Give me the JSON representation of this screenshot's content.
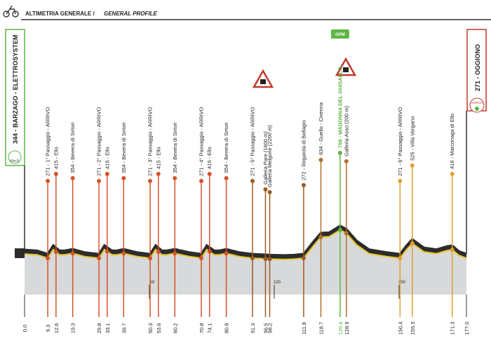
{
  "chart_data": {
    "type": "profile",
    "title": "ALTIMETRIA GENERALE /",
    "subtitle": "GENERAL PROFILE",
    "start": {
      "label": "344 - BARZAGO - ELETTROSYSTEM",
      "note": "Km 0"
    },
    "finish": {
      "label": "271 - OGGIONO",
      "note": "ARRIVO"
    },
    "climb_tag": "GPM",
    "xlim": [
      0,
      177
    ],
    "ylim": [
      200,
      900
    ],
    "xticks": [
      {
        "value": 0,
        "label": "0.0"
      },
      50,
      100,
      150,
      {
        "value": 177,
        "label": "177.0"
      }
    ],
    "profile": {
      "x": [
        0,
        5,
        9.3,
        11.5,
        14,
        16,
        19.3,
        24,
        29.8,
        32,
        35,
        37,
        39.7,
        45,
        50.3,
        52.5,
        55,
        57,
        60.2,
        66,
        70.8,
        73,
        76,
        78,
        80.8,
        86,
        91.3,
        96.5,
        98.2,
        104,
        108,
        111.8,
        116,
        118.7,
        122,
        126.4,
        128.9,
        133,
        138,
        145,
        150.4,
        153,
        155.3,
        160,
        165,
        169,
        171.3,
        174,
        177
      ],
      "values": [
        344,
        330,
        271,
        420,
        330,
        330,
        354,
        300,
        271,
        420,
        330,
        330,
        354,
        300,
        271,
        420,
        330,
        330,
        354,
        300,
        271,
        420,
        330,
        330,
        354,
        300,
        271,
        260,
        255,
        250,
        255,
        272,
        500,
        634,
        640,
        756,
        700,
        500,
        350,
        300,
        271,
        420,
        525,
        380,
        350,
        400,
        416,
        320,
        271
      ]
    },
    "waypoints": [
      {
        "km": 9.3,
        "label": "271 - 1° Passaggio - ARRIVO",
        "color": "#d35428"
      },
      {
        "km": 12.6,
        "label": "415 - Ello",
        "color": "#d35428"
      },
      {
        "km": 19.3,
        "label": "354 - Bevera di Sirtori",
        "color": "#d35428"
      },
      {
        "km": 29.8,
        "label": "271 - 2° Passaggio - ARRIVO",
        "color": "#d35428"
      },
      {
        "km": 33.1,
        "label": "415 - Ello",
        "color": "#d35428"
      },
      {
        "km": 39.7,
        "label": "354 - Bevera di Sirtori",
        "color": "#d35428"
      },
      {
        "km": 50.3,
        "label": "271 - 3° Passaggio - ARRIVO",
        "color": "#d35428"
      },
      {
        "km": 53.6,
        "label": "415 - Ello",
        "color": "#d35428"
      },
      {
        "km": 60.2,
        "label": "354 - Bevera di Sirtori",
        "color": "#d35428"
      },
      {
        "km": 70.8,
        "label": "271 - 4° Passaggio - ARRIVO",
        "color": "#d35428"
      },
      {
        "km": 74.1,
        "label": "415 - Ello",
        "color": "#d35428"
      },
      {
        "km": 80.8,
        "label": "354 - Bevera di Sirtori",
        "color": "#d35428"
      },
      {
        "km": 91.3,
        "label": "271 - 5° Passaggio - ARRIVO",
        "color": "#9c5a24"
      },
      {
        "km": 96.5,
        "label": "Galleria Pare (1600 m)",
        "color": "#9c5a24"
      },
      {
        "km": 98.2,
        "label": "Galleria Melgone (2200 m)",
        "color": "#9c5a24"
      },
      {
        "km": 111.8,
        "label": "272 - Regatola di Bellagio",
        "color": "#9c5a24"
      },
      {
        "km": 118.7,
        "label": "634 - Guello - Civenna",
        "color": "#b0702a"
      },
      {
        "km": 126.4,
        "label": "756 - MADONNA DEL GHISALLO",
        "color": "#5db544"
      },
      {
        "km": 128.9,
        "label": "Galleria Asso (200 m)",
        "color": "#b0702a"
      },
      {
        "km": 150.4,
        "label": "271 - 6° Passaggio - ARRIVO",
        "color": "#e0a030"
      },
      {
        "km": 155.3,
        "label": "525 - Villa Vergano",
        "color": "#e0a030"
      },
      {
        "km": 171.3,
        "label": "416 - Marconaga di Ello",
        "color": "#e0a030"
      }
    ]
  }
}
